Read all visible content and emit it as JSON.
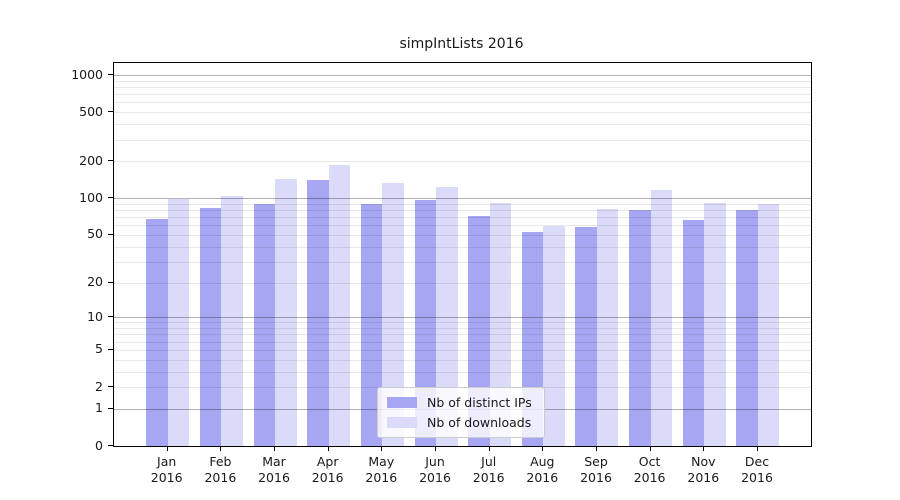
{
  "figure": {
    "title": "simpIntLists 2016"
  },
  "chart_data": {
    "type": "bar",
    "title": "simpIntLists 2016",
    "categories": [
      "Jan",
      "Feb",
      "Mar",
      "Apr",
      "May",
      "Jun",
      "Jul",
      "Aug",
      "Sep",
      "Oct",
      "Nov",
      "Dec"
    ],
    "tick_year": "2016",
    "series": [
      {
        "name": "Nb of distinct IPs",
        "color": "#a6a6f2",
        "values": [
          67,
          83,
          90,
          141,
          90,
          96,
          72,
          53,
          58,
          80,
          66,
          80
        ]
      },
      {
        "name": "Nb of downloads",
        "color": "#dadaf9",
        "values": [
          98,
          104,
          144,
          187,
          132,
          124,
          92,
          59,
          82,
          117,
          91,
          90
        ]
      }
    ],
    "y_scale": "log1p",
    "y_tick_values": [
      0,
      1,
      2,
      5,
      10,
      20,
      50,
      100,
      200,
      500,
      1000
    ],
    "minor_grid_values": [
      2,
      3,
      4,
      5,
      6,
      7,
      8,
      9,
      20,
      30,
      40,
      50,
      60,
      70,
      80,
      90,
      200,
      300,
      400,
      500,
      600,
      700,
      800,
      900
    ],
    "major_grid_values": [
      1,
      10,
      100,
      1000
    ],
    "ylim": [
      0,
      1230
    ],
    "grid": "horizontal",
    "legend_position": "bottom-center",
    "colors": {
      "major_grid": "rgba(0,0,0,0.30)",
      "minor_grid": "rgba(0,0,0,0.09)",
      "spine": "#000000",
      "text": "#1a1a1a"
    }
  }
}
